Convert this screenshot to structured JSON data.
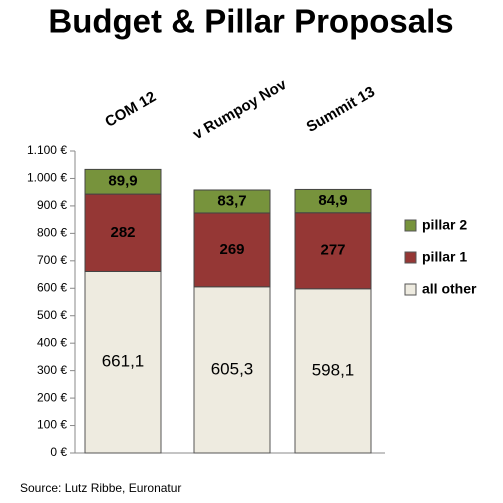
{
  "chart_data": {
    "type": "stacked_bar",
    "title": "Budget & Pillar Proposals",
    "categories": [
      "COM 12",
      "v Rumpoy Nov",
      "Summit 13"
    ],
    "series": [
      {
        "name": "all other",
        "color": "#eeebe0",
        "values": [
          661.1,
          605.3,
          598.1
        ],
        "value_labels": [
          "661,1",
          "605,3",
          "598,1"
        ]
      },
      {
        "name": "pillar 1",
        "color": "#953735",
        "values": [
          282,
          269,
          277
        ]
      },
      {
        "name": "pillar 2",
        "color": "#77933c",
        "values": [
          89.9,
          83.7,
          84.9
        ],
        "value_labels": [
          "89,9",
          "83,7",
          "84,9"
        ]
      }
    ],
    "ylim": [
      0,
      1100
    ],
    "yticks": [
      {
        "value": 0,
        "label": "0 €"
      },
      {
        "value": 100,
        "label": "100 €"
      },
      {
        "value": 200,
        "label": "200 €"
      },
      {
        "value": 300,
        "label": "300 €"
      },
      {
        "value": 400,
        "label": "400 €"
      },
      {
        "value": 500,
        "label": "500 €"
      },
      {
        "value": 600,
        "label": "600 €"
      },
      {
        "value": 700,
        "label": "700 €"
      },
      {
        "value": 800,
        "label": "800 €"
      },
      {
        "value": 900,
        "label": "900 €"
      },
      {
        "value": 1000,
        "label": "1.000 €"
      },
      {
        "value": 1100,
        "label": "1.100 €"
      }
    ],
    "grid": false,
    "legend": "right",
    "source": "Source: Lutz Ribbe, Euronatur"
  }
}
